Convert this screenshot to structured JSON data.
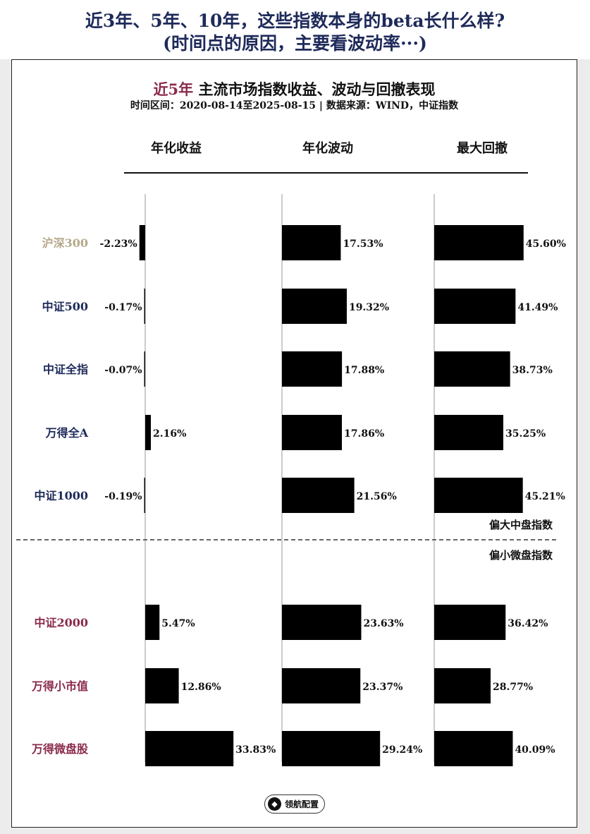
{
  "header": {
    "line1": "近3年、5年、10年，这些指数本身的beta长什么样?",
    "line2": "(时间点的原因，主要看波动率···)"
  },
  "card": {
    "title_accent": "近5年",
    "title_rest": " 主流市场指数收益、波动与回撤表现",
    "subtitle": "时间区间：2020-08-14至2025-08-15 |  数据来源：WIND，中证指数"
  },
  "logo": {
    "text": "领航配置",
    "icon": "compass-icon"
  },
  "colors": {
    "bar": "#000000",
    "hs300_label": "#b5a98a",
    "large_mid_label": "#1e2a5a",
    "small_micro_label": "#8b2a4a",
    "header_text": "#1e2a5a",
    "title_accent": "#8b2a4a"
  },
  "chart_data": {
    "type": "bar",
    "orientation": "horizontal",
    "panels": [
      "年化收益",
      "年化波动",
      "最大回撤"
    ],
    "categories": [
      "沪深300",
      "中证500",
      "中证全指",
      "万得全A",
      "中证1000",
      "中证2000",
      "万得小市值",
      "万得微盘股"
    ],
    "series": [
      {
        "name": "年化收益",
        "values": [
          -2.23,
          -0.17,
          -0.07,
          2.16,
          -0.19,
          5.47,
          12.86,
          33.83
        ],
        "labels": [
          "-2.23%",
          "-0.17%",
          "-0.07%",
          "2.16%",
          "-0.19%",
          "5.47%",
          "12.86%",
          "33.83%"
        ]
      },
      {
        "name": "年化波动",
        "values": [
          17.53,
          19.32,
          17.88,
          17.86,
          21.56,
          23.63,
          23.37,
          29.24
        ],
        "labels": [
          "17.53%",
          "19.32%",
          "17.88%",
          "17.86%",
          "21.56%",
          "23.63%",
          "23.37%",
          "29.24%"
        ]
      },
      {
        "name": "最大回撤",
        "values": [
          45.6,
          41.49,
          38.73,
          35.25,
          45.21,
          36.42,
          28.77,
          40.09
        ],
        "labels": [
          "45.60%",
          "41.49%",
          "38.73%",
          "35.25%",
          "45.21%",
          "36.42%",
          "28.77%",
          "40.09%"
        ]
      }
    ],
    "groups": [
      {
        "label": "偏大中盘指数",
        "members": [
          "沪深300",
          "中证500",
          "中证全指",
          "万得全A",
          "中证1000"
        ]
      },
      {
        "label": "偏小微盘指数",
        "members": [
          "中证2000",
          "万得小市值",
          "万得微盘股"
        ]
      }
    ],
    "category_colors": [
      "#b5a98a",
      "#1e2a5a",
      "#1e2a5a",
      "#1e2a5a",
      "#1e2a5a",
      "#8b2a4a",
      "#8b2a4a",
      "#8b2a4a"
    ],
    "grid": false,
    "legend": "none"
  }
}
